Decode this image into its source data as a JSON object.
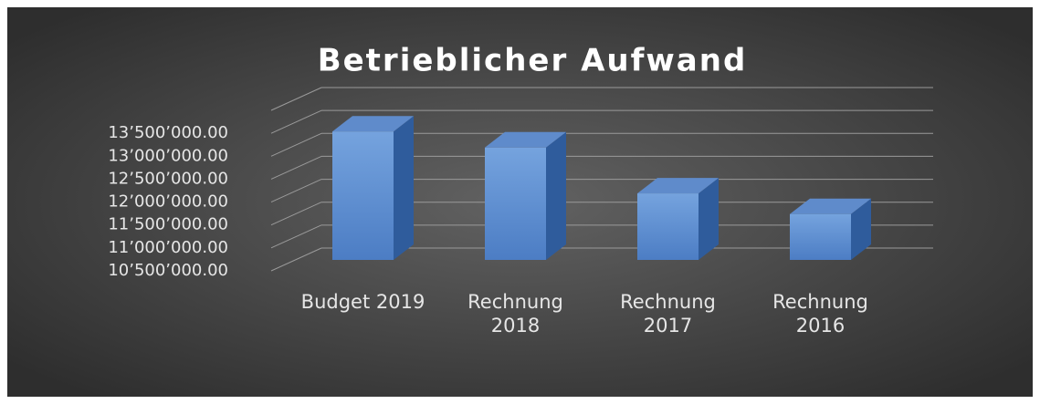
{
  "chart_data": {
    "type": "bar3d",
    "title": "Betrieblicher Aufwand",
    "categories": [
      "Budget 2019",
      "Rechnung 2018",
      "Rechnung 2017",
      "Rechnung 2016"
    ],
    "values": [
      13300000,
      12950000,
      11950000,
      11500000
    ],
    "color": "#5b8bd0",
    "ylim": [
      10500000,
      14000000
    ],
    "yticks": [
      {
        "value": 10500000,
        "label": "10’500’000.00"
      },
      {
        "value": 11000000,
        "label": "11’000’000.00"
      },
      {
        "value": 11500000,
        "label": "11’500’000.00"
      },
      {
        "value": 12000000,
        "label": "12’000’000.00"
      },
      {
        "value": 12500000,
        "label": "12’500’000.00"
      },
      {
        "value": 13000000,
        "label": "13’000’000.00"
      },
      {
        "value": 13500000,
        "label": "13’500’000.00"
      }
    ],
    "grid": true
  }
}
